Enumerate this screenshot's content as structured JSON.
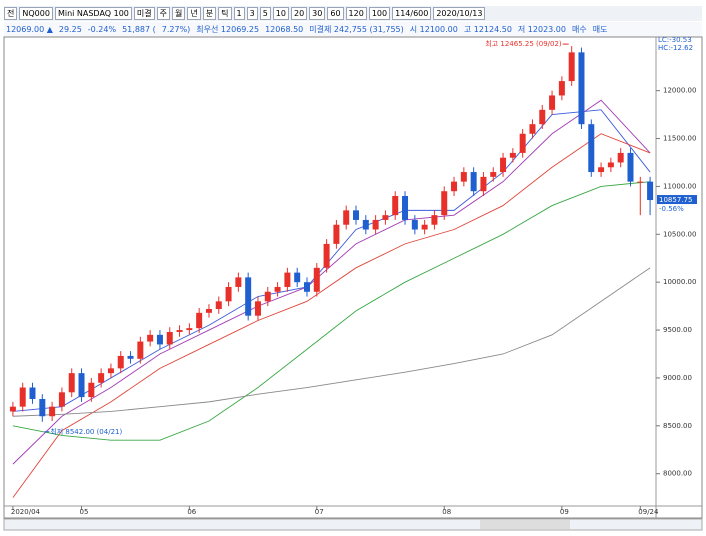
{
  "toolbar": {
    "items": [
      "전",
      "NQ000",
      "Mini NASDAQ 100",
      "미결",
      "주",
      "월",
      "년",
      "분",
      "틱",
      "1",
      "3",
      "5",
      "10",
      "20",
      "30",
      "60",
      "120",
      "100",
      "114/600",
      "2020/10/13"
    ]
  },
  "quote": {
    "items": [
      "12069.00 ▲",
      "29.25",
      "-0.24%",
      "51,887 (",
      "7.27%)",
      "최우선 12069.25",
      "12068.50",
      "미결제 242,755 (31,755)",
      "시 12100.00",
      "고 12124.50",
      "저 12023.00",
      "매수",
      "매도"
    ]
  },
  "chart_data": {
    "type": "candlestick",
    "categories": [
      "2020/04",
      null,
      null,
      null,
      null,
      null,
      null,
      "05",
      null,
      null,
      null,
      null,
      null,
      null,
      null,
      null,
      null,
      null,
      "06",
      null,
      null,
      null,
      null,
      null,
      null,
      null,
      null,
      null,
      null,
      null,
      null,
      "07",
      null,
      null,
      null,
      null,
      null,
      null,
      null,
      null,
      null,
      null,
      null,
      null,
      "08",
      null,
      null,
      null,
      null,
      null,
      null,
      null,
      null,
      null,
      null,
      null,
      "09",
      null,
      null,
      null,
      null,
      null,
      null,
      null,
      "09/24",
      null
    ],
    "open": [
      8650,
      8700,
      8900,
      8780,
      8600,
      8700,
      8850,
      9050,
      8800,
      8950,
      9050,
      9100,
      9230,
      9200,
      9380,
      9450,
      9350,
      9480,
      9500,
      9520,
      9680,
      9720,
      9800,
      9950,
      10050,
      9650,
      9800,
      9900,
      9950,
      10100,
      10000,
      9900,
      10150,
      10400,
      10600,
      10750,
      10650,
      10550,
      10650,
      10700,
      10900,
      10650,
      10550,
      10600,
      10700,
      10950,
      11050,
      11150,
      10950,
      11100,
      11150,
      11300,
      11350,
      11550,
      11650,
      11800,
      11950,
      12100,
      12400,
      11650,
      11150,
      11200,
      11250,
      11350,
      11050,
      11050
    ],
    "high": [
      8750,
      8950,
      8950,
      8830,
      8750,
      8900,
      9100,
      9100,
      9000,
      9100,
      9150,
      9280,
      9280,
      9430,
      9500,
      9500,
      9530,
      9550,
      9570,
      9730,
      9770,
      9850,
      10000,
      10100,
      10100,
      9850,
      9950,
      10000,
      10150,
      10150,
      10050,
      10200,
      10450,
      10650,
      10800,
      10800,
      10700,
      10700,
      10750,
      10950,
      10950,
      10700,
      10650,
      10750,
      11000,
      11100,
      11200,
      11200,
      11150,
      11200,
      11350,
      11400,
      11600,
      11700,
      11850,
      12000,
      12150,
      12465.25,
      12450,
      11700,
      11250,
      11300,
      11400,
      11400,
      11100,
      11100
    ],
    "low": [
      8600,
      8650,
      8730,
      8542,
      8550,
      8650,
      8800,
      8750,
      8750,
      8900,
      9000,
      9050,
      9150,
      9150,
      9330,
      9300,
      9300,
      9430,
      9450,
      9470,
      9630,
      9670,
      9750,
      9900,
      9600,
      9600,
      9750,
      9850,
      9900,
      9950,
      9850,
      9850,
      10100,
      10350,
      10550,
      10600,
      10500,
      10500,
      10600,
      10650,
      10600,
      10500,
      10500,
      10550,
      10650,
      10900,
      11000,
      10900,
      10900,
      11050,
      11100,
      11250,
      11300,
      11500,
      11600,
      11750,
      11900,
      12050,
      11600,
      11100,
      11100,
      11150,
      11200,
      11000,
      10700,
      10700
    ],
    "close": [
      8700,
      8900,
      8780,
      8600,
      8700,
      8850,
      9050,
      8800,
      8950,
      9050,
      9100,
      9230,
      9200,
      9380,
      9450,
      9350,
      9480,
      9500,
      9520,
      9680,
      9720,
      9800,
      9950,
      10050,
      9650,
      9800,
      9900,
      9950,
      10100,
      10000,
      9900,
      10150,
      10400,
      10600,
      10750,
      10650,
      10550,
      10650,
      10700,
      10900,
      10650,
      10550,
      10600,
      10700,
      10950,
      11050,
      11150,
      10950,
      11100,
      11150,
      11300,
      11350,
      11550,
      11650,
      11800,
      11950,
      12100,
      12400,
      11650,
      11150,
      11200,
      11250,
      11350,
      11050,
      11050,
      10857.75
    ],
    "up_color": "#e8302a",
    "down_color": "#1f5fd0",
    "lines": [
      {
        "color": "#3b5bdb",
        "x": [
          0,
          5,
          10,
          15,
          20,
          25,
          30,
          35,
          40,
          45,
          50,
          55,
          60,
          65
        ],
        "values": [
          8650,
          8700,
          9000,
          9300,
          9550,
          9850,
          9950,
          10550,
          10750,
          10750,
          11150,
          11750,
          11800,
          11150
        ]
      },
      {
        "color": "#a23bb5",
        "x": [
          0,
          5,
          10,
          15,
          20,
          25,
          30,
          35,
          40,
          45,
          50,
          55,
          60,
          65
        ],
        "values": [
          8100,
          8600,
          8900,
          9250,
          9500,
          9750,
          9950,
          10400,
          10650,
          10700,
          11050,
          11550,
          11900,
          11350
        ]
      },
      {
        "color": "#e0453a",
        "x": [
          0,
          5,
          10,
          15,
          20,
          25,
          30,
          35,
          40,
          45,
          50,
          55,
          60,
          65
        ],
        "values": [
          7750,
          8450,
          8750,
          9100,
          9350,
          9600,
          9800,
          10150,
          10400,
          10550,
          10800,
          11200,
          11550,
          11350
        ]
      },
      {
        "color": "#39a845",
        "x": [
          0,
          5,
          10,
          15,
          20,
          25,
          30,
          35,
          40,
          45,
          50,
          55,
          60,
          65
        ],
        "values": [
          8500,
          8400,
          8350,
          8350,
          8550,
          8900,
          9300,
          9700,
          10000,
          10250,
          10500,
          10800,
          11000,
          11050
        ]
      },
      {
        "color": "#8a8a8a",
        "x": [
          0,
          5,
          10,
          15,
          20,
          25,
          30,
          35,
          40,
          45,
          50,
          55,
          60,
          65
        ],
        "values": [
          8600,
          8620,
          8650,
          8700,
          8750,
          8830,
          8900,
          8980,
          9060,
          9150,
          9250,
          9450,
          9800,
          10150
        ]
      }
    ],
    "ylim": [
      7600,
      12550
    ],
    "yticks": [
      {
        "value": 8000,
        "label": "8000.00"
      },
      {
        "value": 8500,
        "label": "8500.00"
      },
      {
        "value": 9000,
        "label": "9000.00"
      },
      {
        "value": 9500,
        "label": "9500.00"
      },
      {
        "value": 10000,
        "label": "10000.00"
      },
      {
        "value": 10500,
        "label": "10500.00"
      },
      {
        "value": 11000,
        "label": "11000.00"
      },
      {
        "value": 11500,
        "label": "11500.00"
      },
      {
        "value": 12000,
        "label": "12000.00"
      }
    ],
    "high_label": "최고 12465.25 (09/02)",
    "low_label": "최저 8542.00 (04/21)",
    "last_label": "10857.75",
    "change_label": "-0.56%",
    "lc_label": "LC:-30.53",
    "hc_label": "HC:-12.62"
  }
}
